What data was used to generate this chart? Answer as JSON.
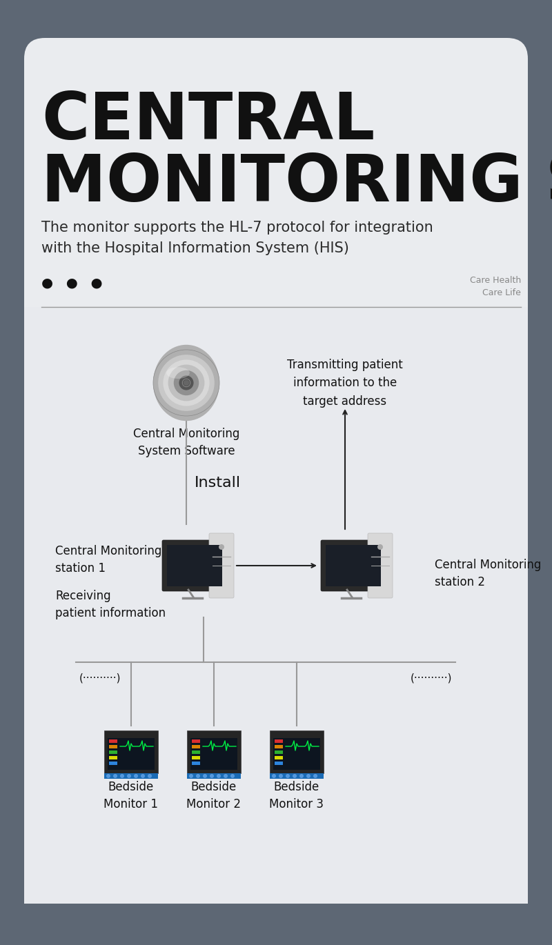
{
  "bg_outer": "#5d6774",
  "bg_card": "#eaecef",
  "title_line1": "CENTRAL",
  "title_line2": "MONITORING SYSTEM",
  "subtitle": "The monitor supports the HL-7 protocol for integration\nwith the Hospital Information System (HIS)",
  "dots_text": "●   ●   ●",
  "tagline": "Care Health\nCare Life",
  "cd_label": "Central Monitoring\nSystem Software",
  "transmit_label": "Transmitting patient\ninformation to the\ntarget address",
  "install_label": "Install",
  "station1_label": "Central Monitoring\nstation 1",
  "station1_sub": "Receiving\npatient information",
  "station2_label": "Central Monitoring\nstation 2",
  "dotted_left": "(··········)",
  "dotted_right": "(··········)",
  "bedside_labels": [
    "Bedside\nMonitor 1",
    "Bedside\nMonitor 2",
    "Bedside\nMonitor 3"
  ],
  "text_dark": "#111111",
  "text_medium": "#2a2a2a",
  "text_light": "#888888",
  "line_color": "#999999",
  "arrow_color": "#222222",
  "fig_w": 8.0,
  "fig_h": 13.7,
  "dpi": 100
}
